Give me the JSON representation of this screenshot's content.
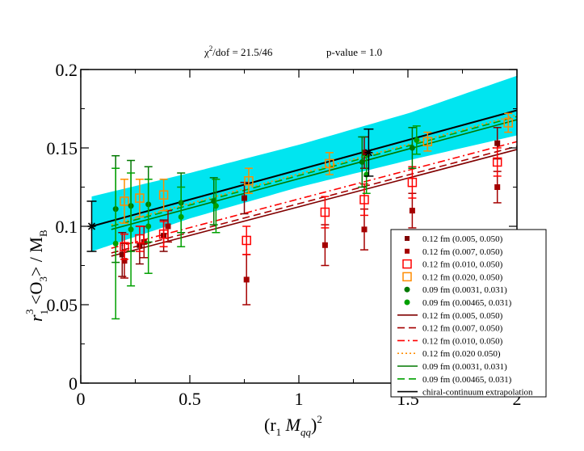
{
  "chart_data": {
    "type": "scatter",
    "title_parts": {
      "chi": "χ",
      "chi_sup": "2",
      "chi_rest": "/dof = 21.5/46",
      "pvalue": "p-value = 1.0"
    },
    "xlabel_parts": {
      "open": "(r",
      "sub1": "1",
      "mid": " M",
      "sub2": "qq",
      "close": ")",
      "sup": "2"
    },
    "ylabel_parts": {
      "r": "r",
      "sub": "1",
      "sup": "3",
      "o_open": " <O",
      "o_sub": "3",
      "o_close": "> / M",
      "b_sub": "B"
    },
    "xlim": [
      0,
      2
    ],
    "ylim": [
      0,
      0.2
    ],
    "xticks": [
      0,
      0.5,
      1,
      1.5,
      2
    ],
    "xtick_labels": [
      "0",
      "0.5",
      "1",
      "1.5",
      "2"
    ],
    "yticks": [
      0,
      0.05,
      0.1,
      0.15,
      0.2
    ],
    "ytick_labels": [
      "0",
      "0.05",
      "0.1",
      "0.15",
      "0.2"
    ],
    "band": {
      "color": "#00e5f0",
      "x": [
        0.05,
        0.5,
        1.0,
        1.5,
        2.0
      ],
      "lower": [
        0.084,
        0.105,
        0.125,
        0.142,
        0.158
      ],
      "upper": [
        0.119,
        0.134,
        0.152,
        0.172,
        0.196
      ]
    },
    "points": [
      {
        "name": "0.12 fm  (0.005, 0.050)",
        "color": "#800000",
        "marker": "square-filled",
        "data": [
          {
            "x": 0.19,
            "y": 0.082,
            "err": 0.014
          },
          {
            "x": 0.27,
            "y": 0.088,
            "err": 0.012
          },
          {
            "x": 0.38,
            "y": 0.094,
            "err": 0.01
          },
          {
            "x": 0.75,
            "y": 0.118,
            "err": 0.01
          },
          {
            "x": 1.3,
            "y": 0.147,
            "err": 0.01
          },
          {
            "x": 1.91,
            "y": 0.153,
            "err": 0.01
          }
        ]
      },
      {
        "name": "0.12 fm  (0.007, 0.050)",
        "color": "#a50000",
        "marker": "square-filled",
        "data": [
          {
            "x": 0.2,
            "y": 0.078,
            "err": 0.011
          },
          {
            "x": 0.29,
            "y": 0.09,
            "err": 0.01
          },
          {
            "x": 0.4,
            "y": 0.1,
            "err": 0.01
          },
          {
            "x": 0.76,
            "y": 0.066,
            "err": 0.016
          },
          {
            "x": 1.12,
            "y": 0.088,
            "err": 0.013
          },
          {
            "x": 1.3,
            "y": 0.098,
            "err": 0.013
          },
          {
            "x": 1.52,
            "y": 0.11,
            "err": 0.011
          },
          {
            "x": 1.91,
            "y": 0.125,
            "err": 0.01
          }
        ]
      },
      {
        "name": "0.12 fm  (0.010, 0.050)",
        "color": "#ff0000",
        "marker": "square-open",
        "data": [
          {
            "x": 0.2,
            "y": 0.087,
            "err": 0.008
          },
          {
            "x": 0.27,
            "y": 0.092,
            "err": 0.008
          },
          {
            "x": 0.38,
            "y": 0.095,
            "err": 0.008
          },
          {
            "x": 0.76,
            "y": 0.091,
            "err": 0.009
          },
          {
            "x": 1.12,
            "y": 0.109,
            "err": 0.01
          },
          {
            "x": 1.3,
            "y": 0.117,
            "err": 0.01
          },
          {
            "x": 1.52,
            "y": 0.128,
            "err": 0.01
          },
          {
            "x": 1.91,
            "y": 0.141,
            "err": 0.009
          }
        ]
      },
      {
        "name": "0.12 fm  (0.020, 0.050)",
        "color": "#ff8c00",
        "marker": "square-open",
        "data": [
          {
            "x": 0.2,
            "y": 0.116,
            "err": 0.014
          },
          {
            "x": 0.27,
            "y": 0.118,
            "err": 0.012
          },
          {
            "x": 0.38,
            "y": 0.12,
            "err": 0.01
          },
          {
            "x": 0.77,
            "y": 0.129,
            "err": 0.008
          },
          {
            "x": 1.14,
            "y": 0.14,
            "err": 0.007
          },
          {
            "x": 1.59,
            "y": 0.154,
            "err": 0.006
          },
          {
            "x": 1.96,
            "y": 0.166,
            "err": 0.006
          }
        ]
      },
      {
        "name": "0.09 fm  (0.0031, 0.031)",
        "color": "#007800",
        "marker": "circle-filled",
        "data": [
          {
            "x": 0.16,
            "y": 0.111,
            "err": 0.034
          },
          {
            "x": 0.23,
            "y": 0.113,
            "err": 0.029
          },
          {
            "x": 0.31,
            "y": 0.114,
            "err": 0.024
          },
          {
            "x": 0.46,
            "y": 0.115,
            "err": 0.019
          },
          {
            "x": 0.61,
            "y": 0.116,
            "err": 0.015
          },
          {
            "x": 1.29,
            "y": 0.141,
            "err": 0.016
          },
          {
            "x": 1.52,
            "y": 0.15,
            "err": 0.013
          }
        ]
      },
      {
        "name": "0.09 fm  (0.00465, 0.031)",
        "color": "#00a000",
        "marker": "circle-filled",
        "data": [
          {
            "x": 0.16,
            "y": 0.089,
            "err": 0.048
          },
          {
            "x": 0.23,
            "y": 0.098,
            "err": 0.036
          },
          {
            "x": 0.31,
            "y": 0.1,
            "err": 0.03
          },
          {
            "x": 0.46,
            "y": 0.106,
            "err": 0.019
          },
          {
            "x": 0.62,
            "y": 0.113,
            "err": 0.017
          },
          {
            "x": 1.31,
            "y": 0.133,
            "err": 0.012
          },
          {
            "x": 1.54,
            "y": 0.155,
            "err": 0.009
          }
        ]
      }
    ],
    "lines": [
      {
        "name": "0.12 fm  (0.005, 0.050)",
        "color": "#800000",
        "dash": "",
        "x": [
          0.14,
          2.0
        ],
        "y": [
          0.081,
          0.149
        ]
      },
      {
        "name": "0.12 fm  (0.007, 0.050)",
        "color": "#a50000",
        "dash": "9,5",
        "x": [
          0.14,
          2.0
        ],
        "y": [
          0.083,
          0.151
        ]
      },
      {
        "name": "0.12 fm  (0.010, 0.050)",
        "color": "#ff0000",
        "dash": "9,4,2,4",
        "x": [
          0.14,
          2.0
        ],
        "y": [
          0.086,
          0.154
        ]
      },
      {
        "name": "0.12 fm  (0.020 0.050)",
        "color": "#ff8c00",
        "dash": "2,3",
        "x": [
          0.14,
          2.0
        ],
        "y": [
          0.101,
          0.171
        ]
      },
      {
        "name": "0.09 fm  (0.0031, 0.031)",
        "color": "#007800",
        "dash": "",
        "x": [
          0.14,
          2.0
        ],
        "y": [
          0.098,
          0.168
        ]
      },
      {
        "name": "0.09 fm  (0.00465, 0.031)",
        "color": "#00a000",
        "dash": "9,5",
        "x": [
          0.14,
          2.0
        ],
        "y": [
          0.1,
          0.17
        ]
      },
      {
        "name": "chiral-continuum extrapolation",
        "color": "#000000",
        "dash": "",
        "x": [
          0.05,
          2.0
        ],
        "y": [
          0.1,
          0.174
        ]
      }
    ],
    "extrapolation_points": [
      {
        "x": 0.05,
        "y": 0.1,
        "err": 0.016
      },
      {
        "x": 1.32,
        "y": 0.147,
        "err": 0.015
      }
    ],
    "legend_position": "bottom-right"
  }
}
